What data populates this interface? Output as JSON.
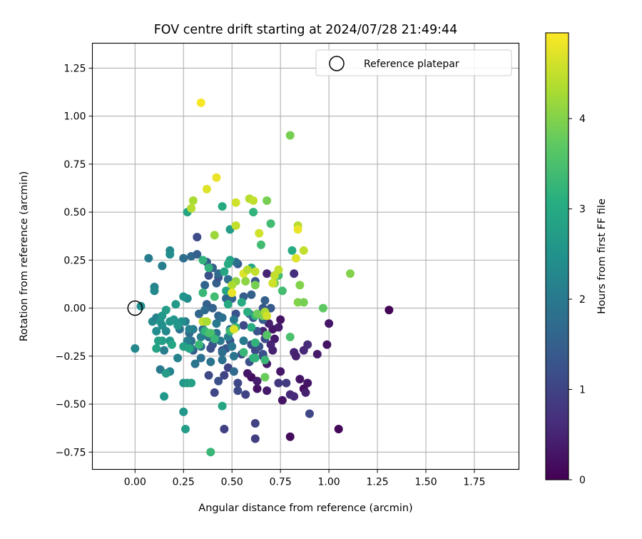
{
  "chart_data": {
    "type": "scatter",
    "title": "FOV centre drift starting at 2024/07/28 21:49:44",
    "xlabel": "Angular distance from reference (arcmin)",
    "ylabel": "Rotation from reference (arcmin)",
    "xlim": [
      -0.22,
      1.98
    ],
    "ylim": [
      -0.84,
      1.38
    ],
    "xticks": [
      0.0,
      0.25,
      0.5,
      0.75,
      1.0,
      1.25,
      1.5,
      1.75
    ],
    "xtick_labels": [
      "0.00",
      "0.25",
      "0.50",
      "0.75",
      "1.00",
      "1.25",
      "1.50",
      "1.75"
    ],
    "yticks": [
      -0.75,
      -0.5,
      -0.25,
      0.0,
      0.25,
      0.5,
      0.75,
      1.0,
      1.25
    ],
    "ytick_labels": [
      "−0.75",
      "−0.50",
      "−0.25",
      "0.00",
      "0.25",
      "0.50",
      "0.75",
      "1.00",
      "1.25"
    ],
    "grid": true,
    "colormap": "viridis",
    "colorbar": {
      "label": "Hours from first FF file",
      "range": [
        0,
        4.95
      ],
      "ticks": [
        0,
        1,
        2,
        3,
        4
      ],
      "tick_labels": [
        "0",
        "1",
        "2",
        "3",
        "4"
      ]
    },
    "legend": {
      "position": "top-right",
      "entries": [
        "Reference platepar"
      ]
    },
    "reference_point": {
      "x": 0.0,
      "y": 0.0,
      "marker": "open-circle",
      "label": "Reference platepar"
    },
    "points": [
      {
        "x": 1.31,
        "y": -0.01,
        "h": 0.05
      },
      {
        "x": 1.05,
        "y": -0.63,
        "h": 0.1
      },
      {
        "x": 0.8,
        "y": -0.67,
        "h": 0.15
      },
      {
        "x": 0.99,
        "y": -0.19,
        "h": 0.25
      },
      {
        "x": 1.0,
        "y": -0.08,
        "h": 0.3
      },
      {
        "x": 0.94,
        "y": -0.24,
        "h": 0.35
      },
      {
        "x": 0.89,
        "y": -0.39,
        "h": 0.3
      },
      {
        "x": 0.87,
        "y": -0.42,
        "h": 0.2
      },
      {
        "x": 0.85,
        "y": -0.37,
        "h": 0.25
      },
      {
        "x": 0.88,
        "y": -0.44,
        "h": 0.45
      },
      {
        "x": 0.87,
        "y": -0.22,
        "h": 0.55
      },
      {
        "x": 0.89,
        "y": -0.19,
        "h": 0.6
      },
      {
        "x": 0.82,
        "y": -0.23,
        "h": 0.5
      },
      {
        "x": 0.83,
        "y": -0.25,
        "h": 0.45
      },
      {
        "x": 0.8,
        "y": -0.45,
        "h": 0.55
      },
      {
        "x": 0.82,
        "y": -0.46,
        "h": 0.6
      },
      {
        "x": 0.76,
        "y": -0.48,
        "h": 0.25
      },
      {
        "x": 0.75,
        "y": -0.33,
        "h": 0.3
      },
      {
        "x": 0.72,
        "y": -0.16,
        "h": 0.35
      },
      {
        "x": 0.71,
        "y": -0.22,
        "h": 0.45
      },
      {
        "x": 0.7,
        "y": -0.19,
        "h": 0.5
      },
      {
        "x": 0.71,
        "y": -0.11,
        "h": 0.3
      },
      {
        "x": 0.75,
        "y": -0.06,
        "h": 0.25
      },
      {
        "x": 0.74,
        "y": -0.1,
        "h": 0.4
      },
      {
        "x": 0.69,
        "y": -0.08,
        "h": 0.45
      },
      {
        "x": 0.66,
        "y": -0.12,
        "h": 0.5
      },
      {
        "x": 0.68,
        "y": -0.29,
        "h": 0.35
      },
      {
        "x": 0.63,
        "y": -0.42,
        "h": 0.25
      },
      {
        "x": 0.68,
        "y": -0.43,
        "h": 0.35
      },
      {
        "x": 0.6,
        "y": -0.36,
        "h": 0.2
      },
      {
        "x": 0.58,
        "y": -0.34,
        "h": 0.3
      },
      {
        "x": 0.63,
        "y": -0.38,
        "h": 0.4
      },
      {
        "x": 0.68,
        "y": 0.18,
        "h": 0.5
      },
      {
        "x": 0.72,
        "y": 0.17,
        "h": 0.6
      },
      {
        "x": 0.82,
        "y": 0.18,
        "h": 0.65
      },
      {
        "x": 0.66,
        "y": -0.25,
        "h": 0.65
      },
      {
        "x": 0.74,
        "y": -0.39,
        "h": 0.8
      },
      {
        "x": 0.78,
        "y": -0.39,
        "h": 0.85
      },
      {
        "x": 0.62,
        "y": -0.6,
        "h": 0.95
      },
      {
        "x": 0.62,
        "y": -0.68,
        "h": 0.9
      },
      {
        "x": 0.46,
        "y": -0.63,
        "h": 0.95
      },
      {
        "x": 0.9,
        "y": -0.55,
        "h": 1.05
      },
      {
        "x": 0.57,
        "y": -0.45,
        "h": 1.0
      },
      {
        "x": 0.53,
        "y": -0.39,
        "h": 1.05
      },
      {
        "x": 0.53,
        "y": -0.43,
        "h": 1.1
      },
      {
        "x": 0.41,
        "y": -0.44,
        "h": 1.05
      },
      {
        "x": 0.46,
        "y": -0.35,
        "h": 1.0
      },
      {
        "x": 0.48,
        "y": -0.31,
        "h": 1.0
      },
      {
        "x": 0.38,
        "y": -0.35,
        "h": 1.1
      },
      {
        "x": 0.43,
        "y": -0.38,
        "h": 1.2
      },
      {
        "x": 0.51,
        "y": -0.33,
        "h": 1.7
      },
      {
        "x": 0.55,
        "y": -0.24,
        "h": 1.1
      },
      {
        "x": 0.59,
        "y": -0.28,
        "h": 1.2
      },
      {
        "x": 0.6,
        "y": -0.19,
        "h": 1.15
      },
      {
        "x": 0.62,
        "y": -0.22,
        "h": 1.1
      },
      {
        "x": 0.64,
        "y": -0.2,
        "h": 1.25
      },
      {
        "x": 0.66,
        "y": -0.24,
        "h": 1.2
      },
      {
        "x": 0.67,
        "y": -0.16,
        "h": 1.15
      },
      {
        "x": 0.63,
        "y": -0.12,
        "h": 1.3
      },
      {
        "x": 0.56,
        "y": -0.09,
        "h": 1.1
      },
      {
        "x": 0.61,
        "y": -0.05,
        "h": 1.3
      },
      {
        "x": 0.52,
        "y": -0.03,
        "h": 1.25
      },
      {
        "x": 0.49,
        "y": -0.17,
        "h": 1.3
      },
      {
        "x": 0.45,
        "y": -0.22,
        "h": 1.25
      },
      {
        "x": 0.47,
        "y": -0.21,
        "h": 1.35
      },
      {
        "x": 0.4,
        "y": -0.19,
        "h": 1.3
      },
      {
        "x": 0.39,
        "y": -0.21,
        "h": 1.2
      },
      {
        "x": 0.3,
        "y": -0.22,
        "h": 1.4
      },
      {
        "x": 0.32,
        "y": 0.37,
        "h": 1.15
      },
      {
        "x": 0.38,
        "y": 0.17,
        "h": 1.2
      },
      {
        "x": 0.37,
        "y": 0.24,
        "h": 1.4
      },
      {
        "x": 0.4,
        "y": 0.21,
        "h": 1.5
      },
      {
        "x": 0.42,
        "y": 0.13,
        "h": 1.5
      },
      {
        "x": 0.43,
        "y": 0.16,
        "h": 1.3
      },
      {
        "x": 0.53,
        "y": 0.23,
        "h": 1.4
      },
      {
        "x": 0.62,
        "y": 0.14,
        "h": 1.3
      },
      {
        "x": 0.66,
        "y": 0.0,
        "h": 1.35
      },
      {
        "x": 0.67,
        "y": 0.04,
        "h": 1.5
      },
      {
        "x": 0.7,
        "y": 0.0,
        "h": 1.4
      },
      {
        "x": 0.6,
        "y": 0.07,
        "h": 1.5
      },
      {
        "x": 0.56,
        "y": 0.06,
        "h": 1.45
      },
      {
        "x": 0.66,
        "y": -0.06,
        "h": 1.5
      },
      {
        "x": 0.59,
        "y": -0.03,
        "h": 1.6
      },
      {
        "x": 0.5,
        "y": 0.05,
        "h": 1.55
      },
      {
        "x": 0.47,
        "y": 0.05,
        "h": 1.6
      },
      {
        "x": 0.43,
        "y": -0.04,
        "h": 1.6
      },
      {
        "x": 0.4,
        "y": 0.0,
        "h": 1.55
      },
      {
        "x": 0.37,
        "y": 0.02,
        "h": 1.5
      },
      {
        "x": 0.33,
        "y": -0.03,
        "h": 1.6
      },
      {
        "x": 0.36,
        "y": -0.01,
        "h": 1.7
      },
      {
        "x": 0.29,
        "y": 0.27,
        "h": 1.7
      },
      {
        "x": 0.32,
        "y": 0.28,
        "h": 1.5
      },
      {
        "x": 0.25,
        "y": 0.26,
        "h": 1.75
      },
      {
        "x": 0.36,
        "y": 0.12,
        "h": 1.6
      },
      {
        "x": 0.43,
        "y": 0.18,
        "h": 1.7
      },
      {
        "x": 0.52,
        "y": 0.24,
        "h": 1.8
      },
      {
        "x": 0.48,
        "y": 0.15,
        "h": 1.8
      },
      {
        "x": 0.35,
        "y": -0.11,
        "h": 1.7
      },
      {
        "x": 0.38,
        "y": -0.15,
        "h": 1.75
      },
      {
        "x": 0.29,
        "y": -0.17,
        "h": 1.8
      },
      {
        "x": 0.28,
        "y": -0.13,
        "h": 1.7
      },
      {
        "x": 0.23,
        "y": -0.11,
        "h": 1.9
      },
      {
        "x": 0.26,
        "y": -0.2,
        "h": 1.9
      },
      {
        "x": 0.31,
        "y": -0.29,
        "h": 1.9
      },
      {
        "x": 0.34,
        "y": -0.26,
        "h": 1.85
      },
      {
        "x": 0.34,
        "y": -0.2,
        "h": 1.8
      },
      {
        "x": 0.39,
        "y": -0.28,
        "h": 1.9
      },
      {
        "x": 0.45,
        "y": -0.23,
        "h": 1.75
      },
      {
        "x": 0.51,
        "y": -0.25,
        "h": 1.9
      },
      {
        "x": 0.5,
        "y": -0.2,
        "h": 1.95
      },
      {
        "x": 0.45,
        "y": -0.27,
        "h": 1.85
      },
      {
        "x": 0.42,
        "y": -0.13,
        "h": 1.9
      },
      {
        "x": 0.45,
        "y": -0.05,
        "h": 1.8
      },
      {
        "x": 0.51,
        "y": -0.06,
        "h": 2.0
      },
      {
        "x": 0.49,
        "y": -0.11,
        "h": 1.8
      },
      {
        "x": 0.42,
        "y": -0.08,
        "h": 2.0
      },
      {
        "x": 0.48,
        "y": -0.15,
        "h": 2.1
      },
      {
        "x": 0.56,
        "y": -0.17,
        "h": 2.0
      },
      {
        "x": 0.44,
        "y": -0.17,
        "h": 2.0
      },
      {
        "x": 0.34,
        "y": -0.15,
        "h": 2.1
      },
      {
        "x": 0.29,
        "y": -0.21,
        "h": 2.0
      },
      {
        "x": 0.27,
        "y": -0.17,
        "h": 2.1
      },
      {
        "x": 0.3,
        "y": -0.11,
        "h": 2.05
      },
      {
        "x": 0.26,
        "y": -0.07,
        "h": 2.1
      },
      {
        "x": 0.28,
        "y": -0.11,
        "h": 2.2
      },
      {
        "x": 0.22,
        "y": -0.26,
        "h": 2.2
      },
      {
        "x": 0.15,
        "y": -0.22,
        "h": 2.1
      },
      {
        "x": 0.13,
        "y": -0.32,
        "h": 2.0
      },
      {
        "x": 0.18,
        "y": -0.33,
        "h": 2.2
      },
      {
        "x": 0.07,
        "y": 0.26,
        "h": 2.05
      },
      {
        "x": 0.14,
        "y": 0.22,
        "h": 2.1
      },
      {
        "x": 0.18,
        "y": 0.3,
        "h": 2.3
      },
      {
        "x": 0.18,
        "y": 0.28,
        "h": 2.4
      },
      {
        "x": 0.1,
        "y": 0.11,
        "h": 2.2
      },
      {
        "x": 0.1,
        "y": 0.09,
        "h": 2.3
      },
      {
        "x": 0.03,
        "y": 0.01,
        "h": 2.4
      },
      {
        "x": -0.0,
        "y": -0.21,
        "h": 2.3
      },
      {
        "x": 0.09,
        "y": -0.07,
        "h": 2.35
      },
      {
        "x": 0.11,
        "y": -0.05,
        "h": 2.2
      },
      {
        "x": 0.13,
        "y": -0.07,
        "h": 2.5
      },
      {
        "x": 0.11,
        "y": -0.12,
        "h": 2.4
      },
      {
        "x": 0.14,
        "y": -0.09,
        "h": 2.45
      },
      {
        "x": 0.16,
        "y": -0.12,
        "h": 2.3
      },
      {
        "x": 0.18,
        "y": -0.07,
        "h": 2.55
      },
      {
        "x": 0.2,
        "y": -0.06,
        "h": 2.6
      },
      {
        "x": 0.24,
        "y": -0.07,
        "h": 2.45
      },
      {
        "x": 0.22,
        "y": -0.09,
        "h": 2.6
      },
      {
        "x": 0.27,
        "y": 0.05,
        "h": 2.4
      },
      {
        "x": 0.25,
        "y": 0.06,
        "h": 2.5
      },
      {
        "x": 0.21,
        "y": 0.02,
        "h": 2.65
      },
      {
        "x": 0.14,
        "y": -0.04,
        "h": 2.6
      },
      {
        "x": 0.16,
        "y": -0.01,
        "h": 2.7
      },
      {
        "x": 0.18,
        "y": -0.17,
        "h": 2.6
      },
      {
        "x": 0.14,
        "y": -0.17,
        "h": 2.7
      },
      {
        "x": 0.12,
        "y": -0.17,
        "h": 2.8
      },
      {
        "x": 0.11,
        "y": -0.21,
        "h": 2.85
      },
      {
        "x": 0.19,
        "y": -0.19,
        "h": 2.9
      },
      {
        "x": 0.25,
        "y": -0.2,
        "h": 2.8
      },
      {
        "x": 0.28,
        "y": -0.21,
        "h": 2.9
      },
      {
        "x": 0.16,
        "y": -0.34,
        "h": 2.7
      },
      {
        "x": 0.15,
        "y": -0.46,
        "h": 2.6
      },
      {
        "x": 0.25,
        "y": -0.39,
        "h": 2.6
      },
      {
        "x": 0.27,
        "y": -0.39,
        "h": 2.7
      },
      {
        "x": 0.29,
        "y": -0.39,
        "h": 2.8
      },
      {
        "x": 0.25,
        "y": -0.54,
        "h": 2.6
      },
      {
        "x": 0.26,
        "y": -0.63,
        "h": 2.75
      },
      {
        "x": 0.45,
        "y": -0.51,
        "h": 2.9
      },
      {
        "x": 0.39,
        "y": -0.75,
        "h": 3.3
      },
      {
        "x": 0.27,
        "y": 0.5,
        "h": 2.9
      },
      {
        "x": 0.49,
        "y": 0.41,
        "h": 2.7
      },
      {
        "x": 0.45,
        "y": 0.53,
        "h": 3.0
      },
      {
        "x": 0.46,
        "y": 0.19,
        "h": 2.9
      },
      {
        "x": 0.49,
        "y": 0.25,
        "h": 2.8
      },
      {
        "x": 0.6,
        "y": 0.21,
        "h": 2.9
      },
      {
        "x": 0.48,
        "y": 0.23,
        "h": 3.0
      },
      {
        "x": 0.81,
        "y": 0.3,
        "h": 3.0
      },
      {
        "x": 0.48,
        "y": 0.02,
        "h": 3.0
      },
      {
        "x": 0.47,
        "y": 0.09,
        "h": 2.9
      },
      {
        "x": 0.55,
        "y": 0.03,
        "h": 3.0
      },
      {
        "x": 0.58,
        "y": -0.02,
        "h": 3.1
      },
      {
        "x": 0.62,
        "y": -0.04,
        "h": 3.2
      },
      {
        "x": 0.6,
        "y": -0.1,
        "h": 3.1
      },
      {
        "x": 0.62,
        "y": -0.18,
        "h": 3.2
      },
      {
        "x": 0.61,
        "y": -0.26,
        "h": 3.1
      },
      {
        "x": 0.62,
        "y": -0.26,
        "h": 3.2
      },
      {
        "x": 0.67,
        "y": -0.27,
        "h": 3.3
      },
      {
        "x": 0.56,
        "y": -0.23,
        "h": 3.3
      },
      {
        "x": 0.49,
        "y": -0.12,
        "h": 3.3
      },
      {
        "x": 0.52,
        "y": -0.1,
        "h": 3.2
      },
      {
        "x": 0.36,
        "y": -0.12,
        "h": 3.2
      },
      {
        "x": 0.38,
        "y": -0.13,
        "h": 3.4
      },
      {
        "x": 0.33,
        "y": -0.19,
        "h": 3.3
      },
      {
        "x": 0.39,
        "y": -0.13,
        "h": 3.5
      },
      {
        "x": 0.41,
        "y": -0.16,
        "h": 3.3
      },
      {
        "x": 0.35,
        "y": 0.08,
        "h": 3.3
      },
      {
        "x": 0.41,
        "y": 0.06,
        "h": 3.4
      },
      {
        "x": 0.35,
        "y": 0.25,
        "h": 3.2
      },
      {
        "x": 0.38,
        "y": 0.21,
        "h": 3.2
      },
      {
        "x": 0.61,
        "y": 0.5,
        "h": 3.2
      },
      {
        "x": 0.65,
        "y": 0.33,
        "h": 3.4
      },
      {
        "x": 0.7,
        "y": 0.44,
        "h": 3.4
      },
      {
        "x": 0.74,
        "y": 0.17,
        "h": 3.4
      },
      {
        "x": 0.76,
        "y": 0.09,
        "h": 3.4
      },
      {
        "x": 0.8,
        "y": -0.15,
        "h": 3.5
      },
      {
        "x": 0.68,
        "y": -0.14,
        "h": 3.6
      },
      {
        "x": 0.67,
        "y": -0.36,
        "h": 3.8
      },
      {
        "x": 0.63,
        "y": -0.03,
        "h": 3.8
      },
      {
        "x": 0.66,
        "y": -0.04,
        "h": 3.9
      },
      {
        "x": 0.62,
        "y": 0.12,
        "h": 3.9
      },
      {
        "x": 0.72,
        "y": 0.13,
        "h": 3.9
      },
      {
        "x": 0.84,
        "y": 0.03,
        "h": 4.0
      },
      {
        "x": 0.87,
        "y": 0.03,
        "h": 3.9
      },
      {
        "x": 0.97,
        "y": 0.0,
        "h": 3.7
      },
      {
        "x": 1.11,
        "y": 0.18,
        "h": 4.0
      },
      {
        "x": 0.85,
        "y": 0.12,
        "h": 4.0
      },
      {
        "x": 0.8,
        "y": 0.9,
        "h": 3.9
      },
      {
        "x": 0.68,
        "y": 0.56,
        "h": 3.9
      },
      {
        "x": 0.41,
        "y": 0.38,
        "h": 4.2
      },
      {
        "x": 0.42,
        "y": 0.68,
        "h": 4.8
      },
      {
        "x": 0.37,
        "y": 0.62,
        "h": 4.7
      },
      {
        "x": 0.3,
        "y": 0.56,
        "h": 4.3
      },
      {
        "x": 0.29,
        "y": 0.52,
        "h": 4.4
      },
      {
        "x": 0.52,
        "y": 0.55,
        "h": 4.6
      },
      {
        "x": 0.59,
        "y": 0.57,
        "h": 4.4
      },
      {
        "x": 0.61,
        "y": 0.56,
        "h": 4.5
      },
      {
        "x": 0.52,
        "y": 0.43,
        "h": 4.5
      },
      {
        "x": 0.64,
        "y": 0.39,
        "h": 4.6
      },
      {
        "x": 0.84,
        "y": 0.43,
        "h": 4.4
      },
      {
        "x": 0.84,
        "y": 0.41,
        "h": 4.8
      },
      {
        "x": 0.83,
        "y": 0.26,
        "h": 4.7
      },
      {
        "x": 0.87,
        "y": 0.3,
        "h": 4.5
      },
      {
        "x": 0.56,
        "y": 0.18,
        "h": 4.7
      },
      {
        "x": 0.58,
        "y": 0.2,
        "h": 4.4
      },
      {
        "x": 0.62,
        "y": 0.19,
        "h": 4.5
      },
      {
        "x": 0.72,
        "y": 0.17,
        "h": 4.5
      },
      {
        "x": 0.74,
        "y": 0.2,
        "h": 4.5
      },
      {
        "x": 0.71,
        "y": 0.13,
        "h": 4.6
      },
      {
        "x": 0.57,
        "y": 0.14,
        "h": 4.1
      },
      {
        "x": 0.52,
        "y": 0.14,
        "h": 4.1
      },
      {
        "x": 0.5,
        "y": 0.12,
        "h": 4.3
      },
      {
        "x": 0.5,
        "y": 0.08,
        "h": 4.8
      },
      {
        "x": 0.35,
        "y": -0.07,
        "h": 4.5
      },
      {
        "x": 0.37,
        "y": -0.07,
        "h": 4.3
      },
      {
        "x": 0.51,
        "y": -0.11,
        "h": 4.7
      },
      {
        "x": 0.67,
        "y": -0.02,
        "h": 4.3
      },
      {
        "x": 0.68,
        "y": -0.04,
        "h": 4.6
      },
      {
        "x": 0.34,
        "y": 1.07,
        "h": 4.9
      }
    ]
  }
}
